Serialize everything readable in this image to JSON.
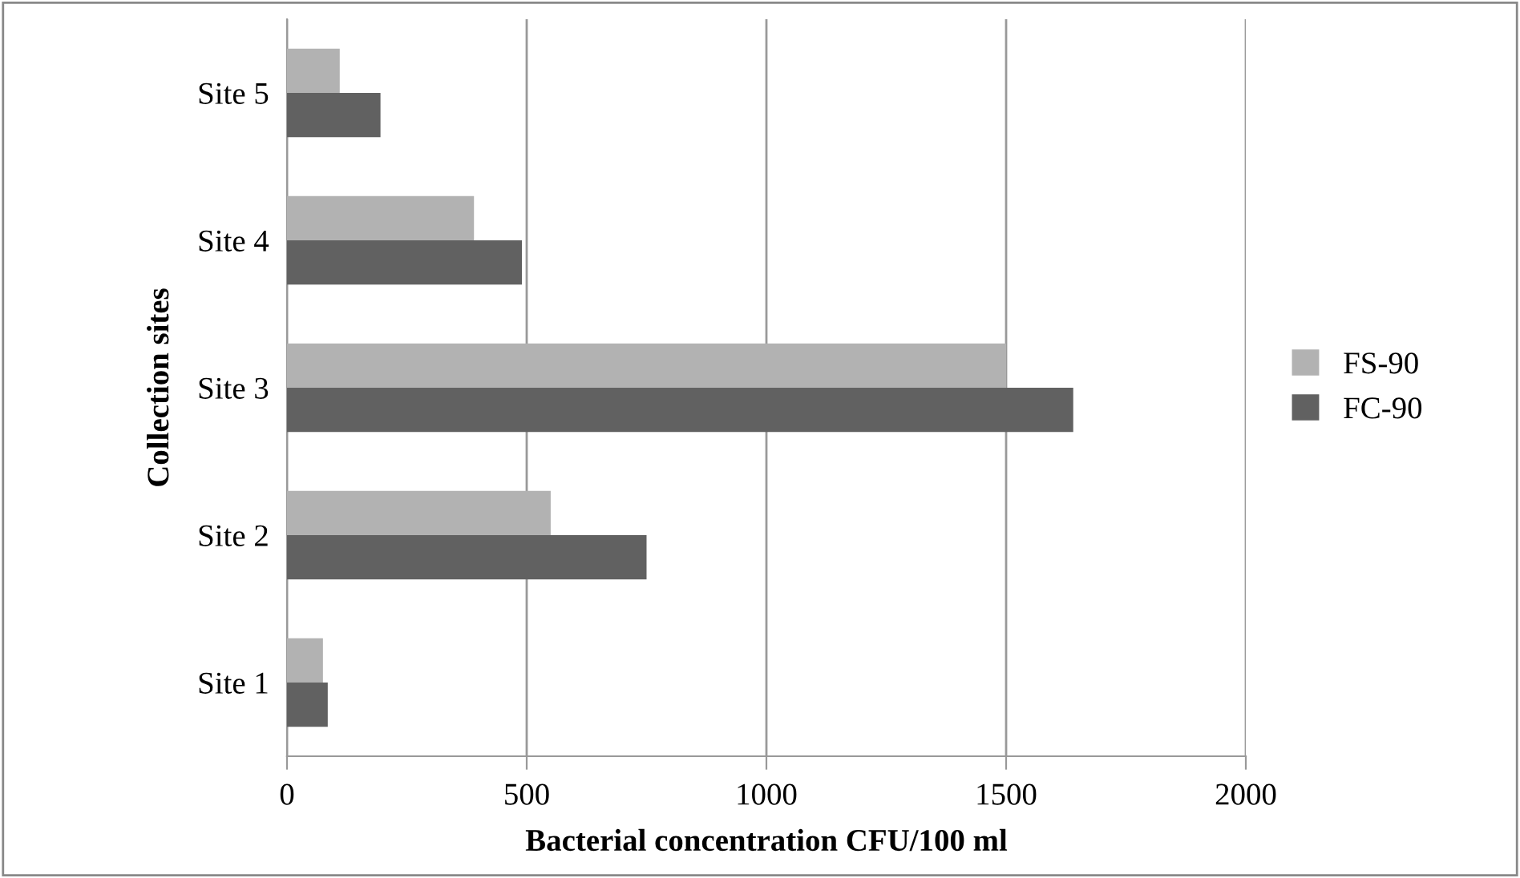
{
  "chart_data": {
    "type": "bar",
    "orientation": "horizontal",
    "xlabel": "Bacterial concentration CFU/100 ml",
    "ylabel": "Collection sites",
    "categories": [
      "Site 5",
      "Site 4",
      "Site 3",
      "Site 2",
      "Site 1"
    ],
    "series": [
      {
        "name": "FS-90",
        "color": "#b2b2b2",
        "values": [
          110,
          390,
          1500,
          550,
          75
        ]
      },
      {
        "name": "FC-90",
        "color": "#616161",
        "values": [
          195,
          490,
          1640,
          750,
          85
        ]
      }
    ],
    "xlim": [
      0,
      2000
    ],
    "xticks": [
      0,
      500,
      1000,
      1500,
      2000
    ],
    "grid": "x",
    "legend": "right"
  }
}
